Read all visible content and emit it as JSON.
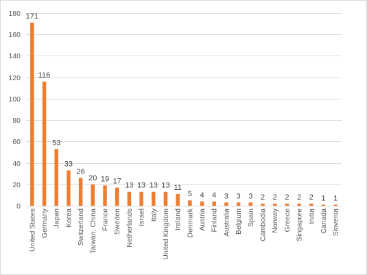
{
  "chart_data": {
    "type": "bar",
    "title": "",
    "xlabel": "",
    "ylabel": "",
    "ylim": [
      0,
      180
    ],
    "yticks": [
      0,
      20,
      40,
      60,
      80,
      100,
      120,
      140,
      160,
      180
    ],
    "grid": true,
    "legend": "none",
    "bar_color": "#ED7D31",
    "categories": [
      "United States",
      "Germany",
      "Japan",
      "Korea",
      "Switzerland",
      "Taiwan, China",
      "France",
      "Sweden",
      "Netherlands",
      "Israel",
      "Italy",
      "United Kingdom",
      "Ireland",
      "Denmark",
      "Austria",
      "Finland",
      "Australia",
      "Belgium",
      "Spain",
      "Cambodia",
      "Norway",
      "Greece",
      "Singapore",
      "India",
      "Canada",
      "Slovenia"
    ],
    "values": [
      171,
      116,
      53,
      33,
      26,
      20,
      19,
      17,
      13,
      13,
      13,
      13,
      11,
      5,
      4,
      4,
      3,
      3,
      3,
      2,
      2,
      2,
      2,
      2,
      1,
      1
    ]
  }
}
